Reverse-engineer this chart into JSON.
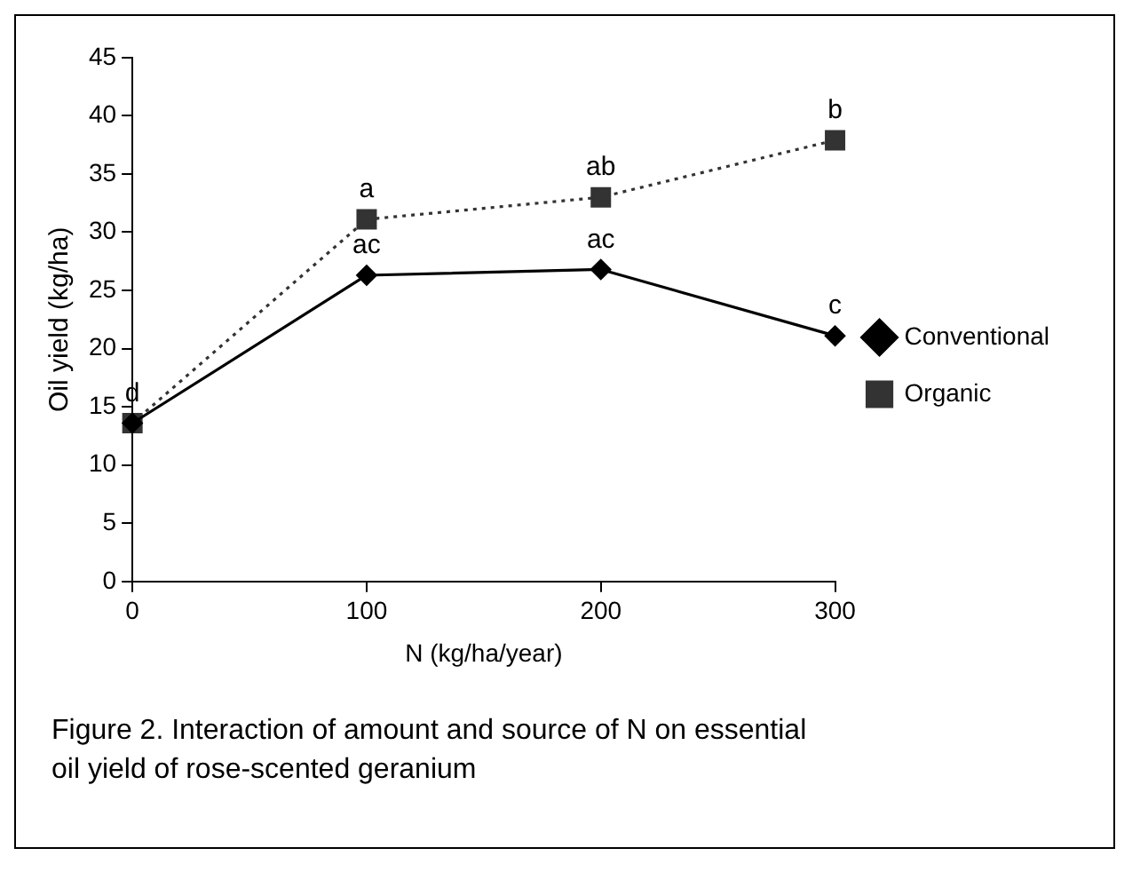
{
  "chart_data": {
    "type": "line",
    "xlabel": "N (kg/ha/year)",
    "ylabel": "Oil yield (kg/ha)",
    "categories": [
      "0",
      "100",
      "200",
      "300"
    ],
    "series": [
      {
        "name": "Conventional",
        "color": "#000000",
        "values": [
          13.6,
          26.3,
          26.8,
          21.1
        ],
        "marker": "diamond",
        "line_style": "solid"
      },
      {
        "name": "Organic",
        "color": "#333333",
        "values": [
          13.6,
          31.1,
          33.0,
          37.9
        ],
        "marker": "square",
        "line_style": "dotted"
      }
    ],
    "ylim": [
      0,
      45
    ],
    "yticks": [
      0,
      5,
      10,
      15,
      20,
      25,
      30,
      35,
      40,
      45
    ],
    "grid": false,
    "legend": "right",
    "annotations": [
      {
        "text": "d",
        "x": "0",
        "y": 13.6
      },
      {
        "text": "a",
        "x": "100",
        "y": 31.1
      },
      {
        "text": "ac",
        "x": "100",
        "y": 26.3
      },
      {
        "text": "ab",
        "x": "200",
        "y": 33.0
      },
      {
        "text": "ac",
        "x": "200",
        "y": 26.8
      },
      {
        "text": "b",
        "x": "300",
        "y": 37.9
      },
      {
        "text": "c",
        "x": "300",
        "y": 21.1
      },
      "Figure 2. Interaction of amount and source of N on essential oil yield of rose-scented geranium"
    ]
  }
}
